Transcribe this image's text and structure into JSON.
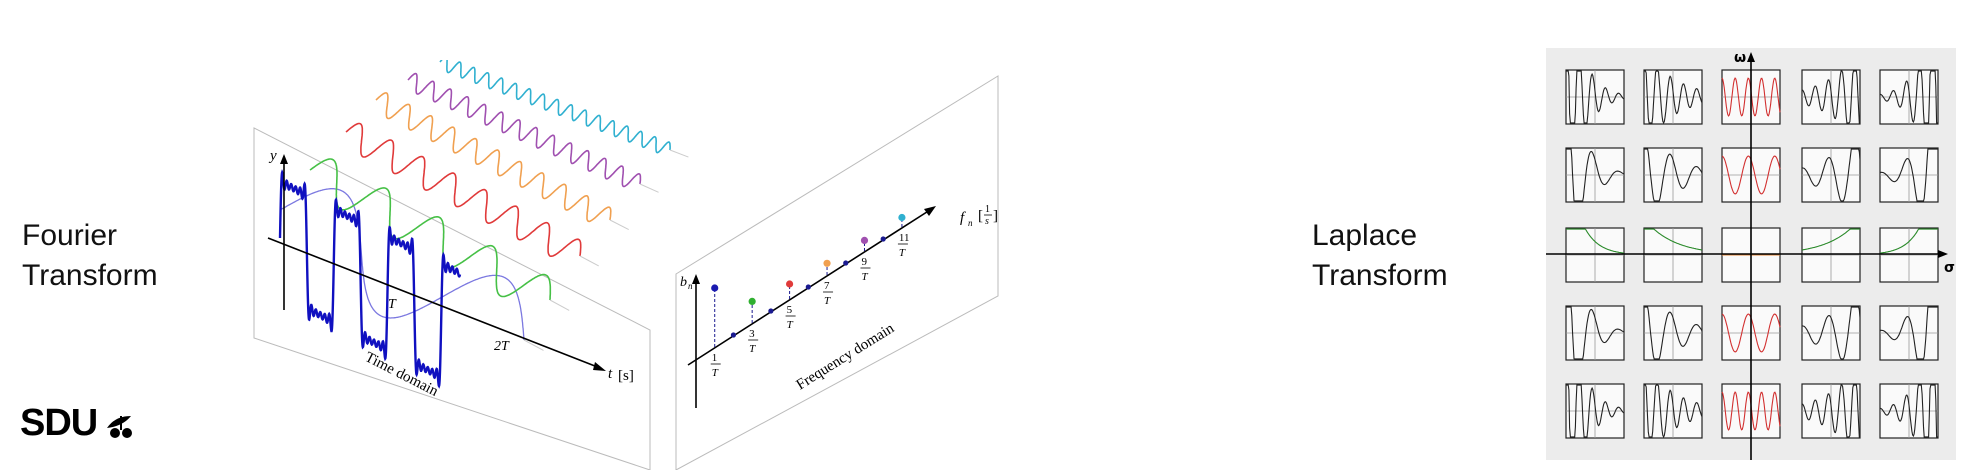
{
  "fourier_label": {
    "line1": "Fourier",
    "line2": "Transform"
  },
  "laplace_label": {
    "line1": "Laplace",
    "line2": "Transform"
  },
  "logo": {
    "text": "SDU"
  },
  "fourier_diagram": {
    "y_axis_label": "y",
    "t_axis_label": "t",
    "t_unit": "[s]",
    "tick_T": "T",
    "tick_2T": "2T",
    "time_domain_label": "Time domain",
    "freq_domain_label": "Frequency domain",
    "bn_label": "b",
    "bn_sub": "n",
    "fn_label": "f",
    "fn_sub": "n",
    "fn_unit_open": "[",
    "fn_unit_num": "1",
    "fn_unit_den": "s",
    "fn_unit_close": "]",
    "freq_ticks": [
      {
        "num": "1",
        "den": "T"
      },
      {
        "num": "3",
        "den": "T"
      },
      {
        "num": "5",
        "den": "T"
      },
      {
        "num": "7",
        "den": "T"
      },
      {
        "num": "9",
        "den": "T"
      },
      {
        "num": "11",
        "den": "T"
      }
    ],
    "harmonic_colors": [
      "#7b78e0",
      "#46c046",
      "#e03a3a",
      "#f0a050",
      "#a050b0",
      "#30b0d0"
    ],
    "square_wave_color": "#1010c0"
  },
  "laplace_diagram": {
    "omega_label": "ω",
    "sigma_label": "σ",
    "red_color": "#d23030",
    "green_color": "#2a8a2a",
    "orange_color": "#e08030"
  }
}
